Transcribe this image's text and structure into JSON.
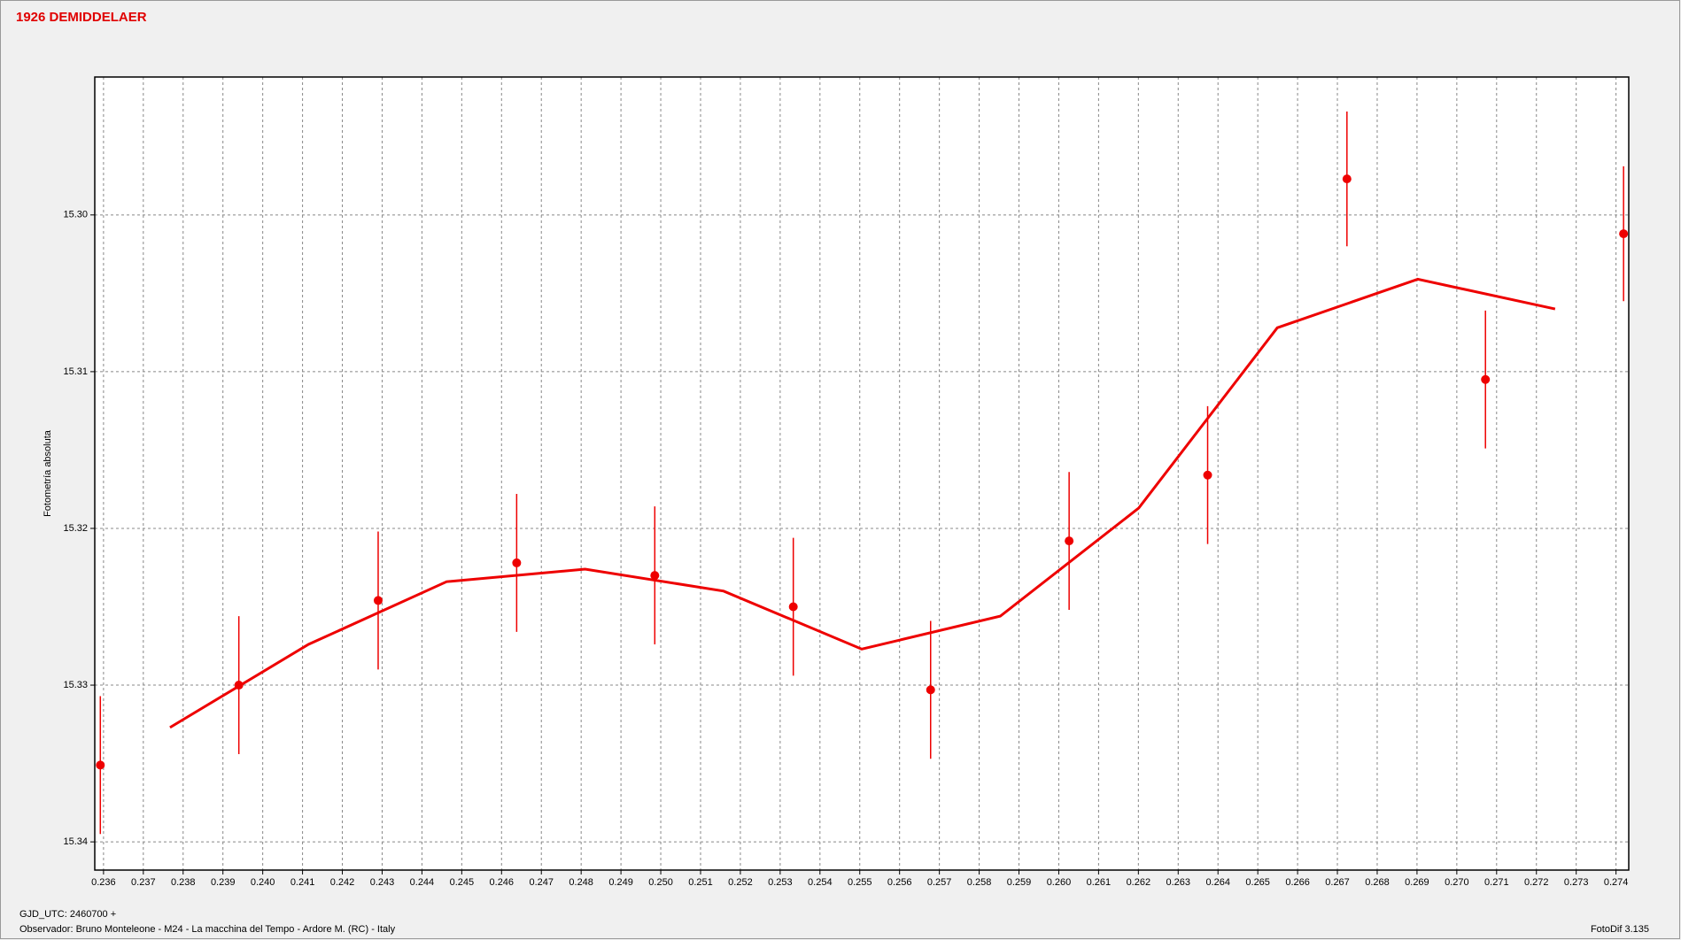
{
  "chart_data": {
    "type": "line",
    "title": "1926 DEMIDDELAER",
    "y_label": "Fotometría absoluta",
    "footer": [
      "GJD_UTC: 2460700 +",
      "Observador: Bruno Monteleone - M24 - La macchina del Tempo - Ardore M. (RC) - Italy"
    ],
    "version": "FotoDif 3.135",
    "xlim": [
      0.23578,
      0.27432
    ],
    "ylim": [
      15.2912,
      15.3418
    ],
    "y_inverted": true,
    "grid": true,
    "xticks": [
      0.236,
      0.237,
      0.238,
      0.239,
      {
        "value": 0.24,
        "label": "0.240"
      },
      0.241,
      0.242,
      0.243,
      0.244,
      0.245,
      0.246,
      0.247,
      0.248,
      0.249,
      {
        "value": 0.25,
        "label": "0.250"
      },
      0.251,
      0.252,
      0.253,
      0.254,
      0.255,
      0.256,
      0.257,
      0.258,
      0.259,
      {
        "value": 0.26,
        "label": "0.260"
      },
      0.261,
      0.262,
      0.263,
      0.264,
      0.265,
      0.266,
      0.267,
      0.268,
      0.269,
      {
        "value": 0.27,
        "label": "0.270"
      },
      0.271,
      0.272,
      0.273,
      0.274
    ],
    "yticks": [
      {
        "value": 15.3,
        "label": "15.30"
      },
      15.31,
      15.32,
      15.33,
      15.34
    ],
    "points": {
      "color": "#ee0000",
      "x": [
        0.23592,
        0.2394,
        0.2429,
        0.24638,
        0.24985,
        0.25333,
        0.25678,
        0.26026,
        0.26374,
        0.26724,
        0.27072,
        0.27419
      ],
      "values": [
        15.3351,
        15.33,
        15.3246,
        15.3222,
        15.323,
        15.325,
        15.3303,
        15.3208,
        15.3166,
        15.2977,
        15.3105,
        15.3012
      ],
      "errors": [
        0.0044,
        0.0044,
        0.0044,
        0.0044,
        0.0044,
        0.0044,
        0.0044,
        0.0044,
        0.0044,
        0.0043,
        0.0044,
        0.0043
      ]
    },
    "fit": {
      "color": "#ee0000",
      "x": [
        0.23767,
        0.24115,
        0.24462,
        0.2481,
        0.25158,
        0.25505,
        0.25853,
        0.26201,
        0.26549,
        0.26902,
        0.27247
      ],
      "values": [
        15.3327,
        15.3274,
        15.3234,
        15.3226,
        15.324,
        15.3277,
        15.3256,
        15.3187,
        15.3072,
        15.3041,
        15.306
      ]
    }
  }
}
